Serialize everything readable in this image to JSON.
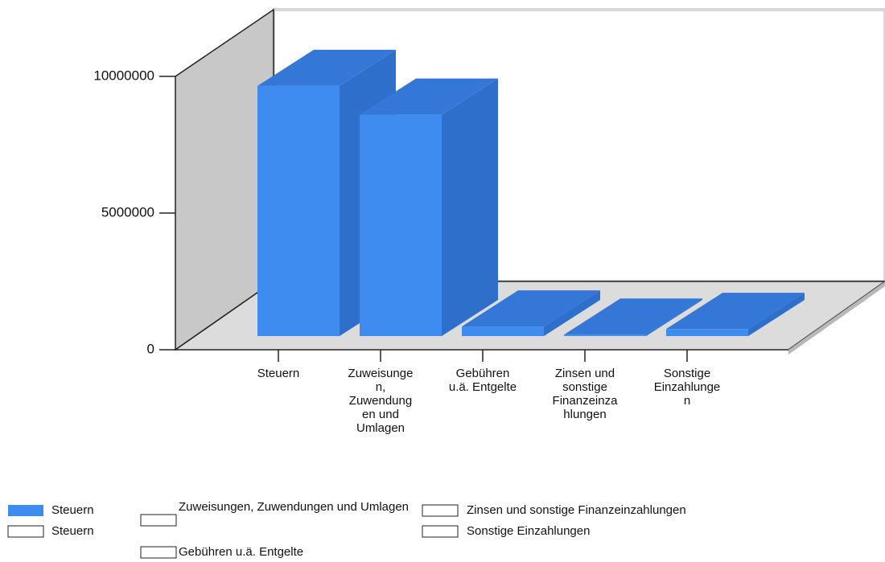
{
  "chart_data": {
    "type": "bar3d",
    "categories": [
      "Steuern",
      "Zuweisungen, Zuwendungen und Umlagen",
      "Gebühren u.ä. Entgelte",
      "Zinsen und sonstige Finanzeinzahlungen",
      "Sonstige Einzahlungen"
    ],
    "series": [
      {
        "name": "Steuern",
        "color": "#3f8cf0",
        "values": [
          9150000,
          8100000,
          350000,
          50000,
          260000
        ]
      }
    ],
    "legend_extra": [
      "Steuern",
      "Zuweisungen, Zuwendungen und Umlagen",
      "Gebühren u.ä. Entgelte",
      "Zinsen und sonstige Finanzeinzahlungen",
      "Sonstige Einzahlungen"
    ],
    "ylim": [
      0,
      10000000
    ],
    "yticks": [
      0,
      5000000,
      10000000
    ]
  }
}
